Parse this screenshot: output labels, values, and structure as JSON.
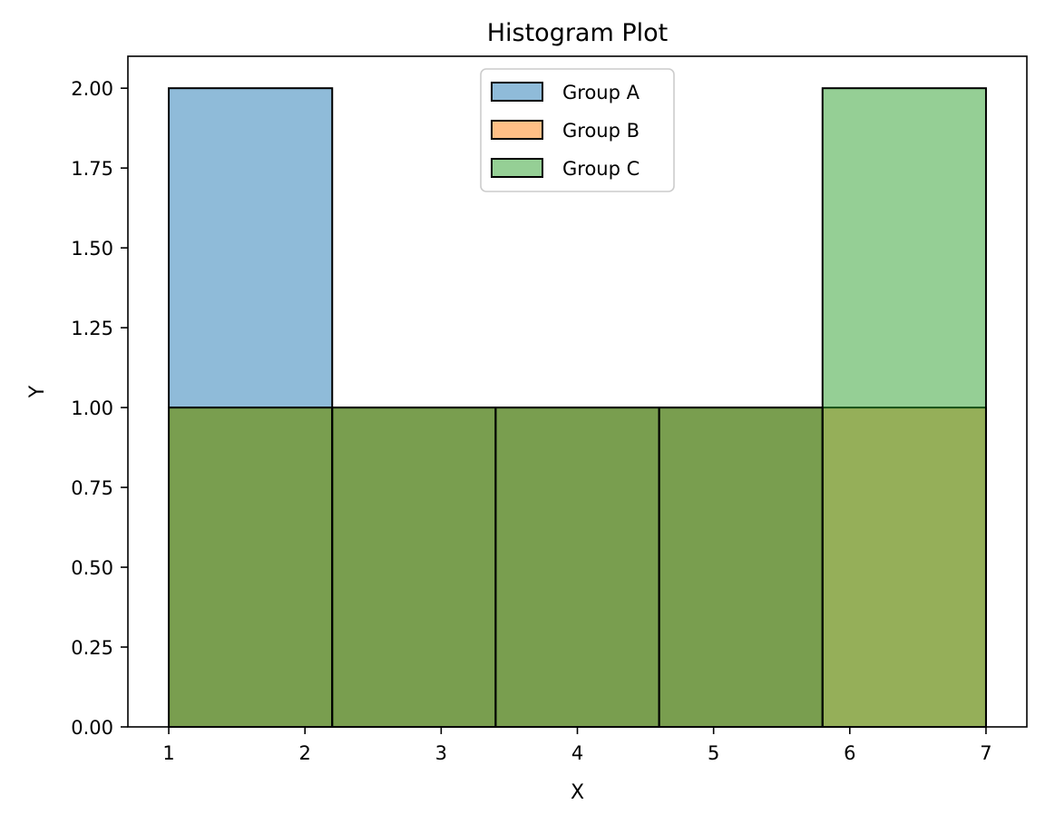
{
  "chart_data": {
    "type": "bar",
    "title": "Histogram Plot",
    "xlabel": "X",
    "ylabel": "Y",
    "xlim": [
      0.7,
      7.3
    ],
    "ylim": [
      0,
      2.1
    ],
    "xticks": [
      1,
      2,
      3,
      4,
      5,
      6,
      7
    ],
    "yticks": [
      0.0,
      0.25,
      0.5,
      0.75,
      1.0,
      1.25,
      1.5,
      1.75,
      2.0
    ],
    "bin_edges": [
      1.0,
      2.2,
      3.4,
      4.6,
      5.8,
      7.0
    ],
    "series": [
      {
        "name": "Group A",
        "color": "#1f77b4",
        "alpha": 0.5,
        "values": [
          2,
          1,
          1,
          1,
          0
        ]
      },
      {
        "name": "Group B",
        "color": "#ff7f0e",
        "alpha": 0.5,
        "values": [
          1,
          1,
          1,
          1,
          1
        ]
      },
      {
        "name": "Group C",
        "color": "#2ca02c",
        "alpha": 0.5,
        "values": [
          1,
          1,
          1,
          1,
          2
        ]
      }
    ],
    "grid": false,
    "legend": "upper center"
  }
}
